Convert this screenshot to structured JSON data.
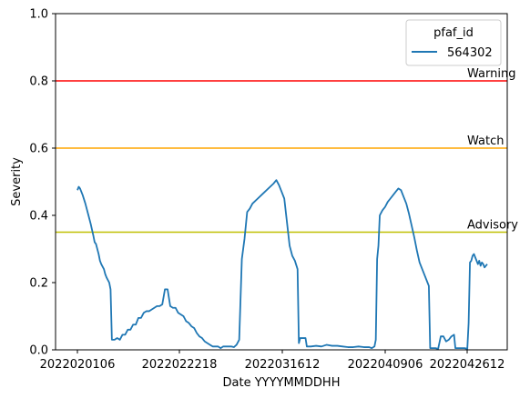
{
  "chart_data": {
    "type": "line",
    "title": "",
    "xlabel": "Date YYYYMMDDHH",
    "ylabel": "Severity",
    "ylim": [
      0,
      1.0
    ],
    "x_tick_labels": [
      "2022020106",
      "2022022218",
      "2022031612",
      "2022040906",
      "2022042612"
    ],
    "y_tick_labels": [
      "0.0",
      "0.2",
      "0.4",
      "0.6",
      "0.8",
      "1.0"
    ],
    "legend": {
      "title": "pfaf_id",
      "placement": "top-right",
      "entries": [
        "564302"
      ]
    },
    "thresholds": [
      {
        "label": "Warning",
        "value": 0.8,
        "color": "#ff0000"
      },
      {
        "label": "Watch",
        "value": 0.6,
        "color": "#ffa500"
      },
      {
        "label": "Advisory",
        "value": 0.35,
        "color": "#bfbf00"
      }
    ],
    "series": [
      {
        "name": "564302",
        "color": "#1f77b4",
        "points": [
          [
            0,
            0.475
          ],
          [
            0.5,
            0.485
          ],
          [
            1,
            0.48
          ],
          [
            2,
            0.46
          ],
          [
            3,
            0.435
          ],
          [
            4,
            0.405
          ],
          [
            5,
            0.375
          ],
          [
            6,
            0.34
          ],
          [
            6.5,
            0.32
          ],
          [
            7,
            0.315
          ],
          [
            8,
            0.285
          ],
          [
            8.5,
            0.265
          ],
          [
            9,
            0.255
          ],
          [
            10,
            0.24
          ],
          [
            10.5,
            0.225
          ],
          [
            11,
            0.215
          ],
          [
            12,
            0.2
          ],
          [
            12.5,
            0.18
          ],
          [
            13,
            0.03
          ],
          [
            14,
            0.03
          ],
          [
            15,
            0.035
          ],
          [
            16,
            0.03
          ],
          [
            17,
            0.045
          ],
          [
            18,
            0.045
          ],
          [
            19,
            0.06
          ],
          [
            20,
            0.06
          ],
          [
            21,
            0.075
          ],
          [
            22,
            0.075
          ],
          [
            23,
            0.095
          ],
          [
            24,
            0.095
          ],
          [
            25,
            0.11
          ],
          [
            26,
            0.115
          ],
          [
            27,
            0.115
          ],
          [
            28,
            0.12
          ],
          [
            29,
            0.125
          ],
          [
            30,
            0.13
          ],
          [
            31,
            0.13
          ],
          [
            32,
            0.135
          ],
          [
            33,
            0.18
          ],
          [
            34,
            0.18
          ],
          [
            35,
            0.13
          ],
          [
            36,
            0.125
          ],
          [
            37,
            0.125
          ],
          [
            38,
            0.11
          ],
          [
            39,
            0.105
          ],
          [
            40,
            0.1
          ],
          [
            41,
            0.085
          ],
          [
            42,
            0.08
          ],
          [
            43,
            0.07
          ],
          [
            44,
            0.065
          ],
          [
            45,
            0.05
          ],
          [
            46,
            0.04
          ],
          [
            47,
            0.035
          ],
          [
            48,
            0.025
          ],
          [
            49,
            0.02
          ],
          [
            50,
            0.015
          ],
          [
            51,
            0.01
          ],
          [
            52,
            0.01
          ],
          [
            53,
            0.01
          ],
          [
            54,
            0.005
          ],
          [
            55,
            0.01
          ],
          [
            56,
            0.01
          ],
          [
            57,
            0.01
          ],
          [
            58,
            0.01
          ],
          [
            59,
            0.008
          ],
          [
            60,
            0.015
          ],
          [
            61,
            0.03
          ],
          [
            62,
            0.27
          ],
          [
            63,
            0.33
          ],
          [
            64,
            0.41
          ],
          [
            65,
            0.42
          ],
          [
            66,
            0.435
          ],
          [
            68,
            0.45
          ],
          [
            70,
            0.465
          ],
          [
            72,
            0.48
          ],
          [
            74,
            0.495
          ],
          [
            75,
            0.505
          ],
          [
            76,
            0.49
          ],
          [
            77,
            0.47
          ],
          [
            78,
            0.45
          ],
          [
            79,
            0.38
          ],
          [
            80,
            0.31
          ],
          [
            81,
            0.28
          ],
          [
            82,
            0.265
          ],
          [
            83,
            0.24
          ],
          [
            83.5,
            0.02
          ],
          [
            84,
            0.035
          ],
          [
            86,
            0.035
          ],
          [
            86.5,
            0.01
          ],
          [
            88,
            0.01
          ],
          [
            90,
            0.012
          ],
          [
            92,
            0.01
          ],
          [
            94,
            0.015
          ],
          [
            96,
            0.012
          ],
          [
            98,
            0.012
          ],
          [
            100,
            0.01
          ],
          [
            102,
            0.008
          ],
          [
            104,
            0.008
          ],
          [
            106,
            0.01
          ],
          [
            108,
            0.008
          ],
          [
            110,
            0.008
          ],
          [
            111,
            0.005
          ],
          [
            112,
            0.01
          ],
          [
            112.5,
            0.03
          ],
          [
            113,
            0.27
          ],
          [
            113.5,
            0.31
          ],
          [
            114,
            0.4
          ],
          [
            115,
            0.415
          ],
          [
            116,
            0.425
          ],
          [
            117,
            0.44
          ],
          [
            118,
            0.45
          ],
          [
            119,
            0.46
          ],
          [
            120,
            0.47
          ],
          [
            121,
            0.48
          ],
          [
            122,
            0.475
          ],
          [
            123,
            0.455
          ],
          [
            124,
            0.435
          ],
          [
            125,
            0.405
          ],
          [
            126,
            0.37
          ],
          [
            127,
            0.335
          ],
          [
            128,
            0.295
          ],
          [
            129,
            0.26
          ],
          [
            130,
            0.24
          ],
          [
            131,
            0.22
          ],
          [
            132,
            0.2
          ],
          [
            132.5,
            0.19
          ],
          [
            133,
            0.005
          ],
          [
            134,
            0.005
          ],
          [
            135,
            0.005
          ],
          [
            136,
            0.003
          ],
          [
            137,
            0.04
          ],
          [
            138,
            0.04
          ],
          [
            139,
            0.025
          ],
          [
            140,
            0.03
          ],
          [
            141,
            0.04
          ],
          [
            142,
            0.045
          ],
          [
            142.5,
            0.005
          ],
          [
            144,
            0.005
          ],
          [
            146,
            0.005
          ],
          [
            147,
            0.003
          ],
          [
            147.5,
            0.08
          ],
          [
            148,
            0.26
          ],
          [
            148.5,
            0.265
          ],
          [
            149,
            0.28
          ],
          [
            149.5,
            0.285
          ],
          [
            150,
            0.275
          ],
          [
            151,
            0.255
          ],
          [
            151.5,
            0.265
          ],
          [
            152,
            0.25
          ],
          [
            152.5,
            0.26
          ],
          [
            153,
            0.255
          ],
          [
            153.5,
            0.245
          ],
          [
            154,
            0.25
          ],
          [
            154.5,
            0.255
          ]
        ]
      }
    ]
  }
}
